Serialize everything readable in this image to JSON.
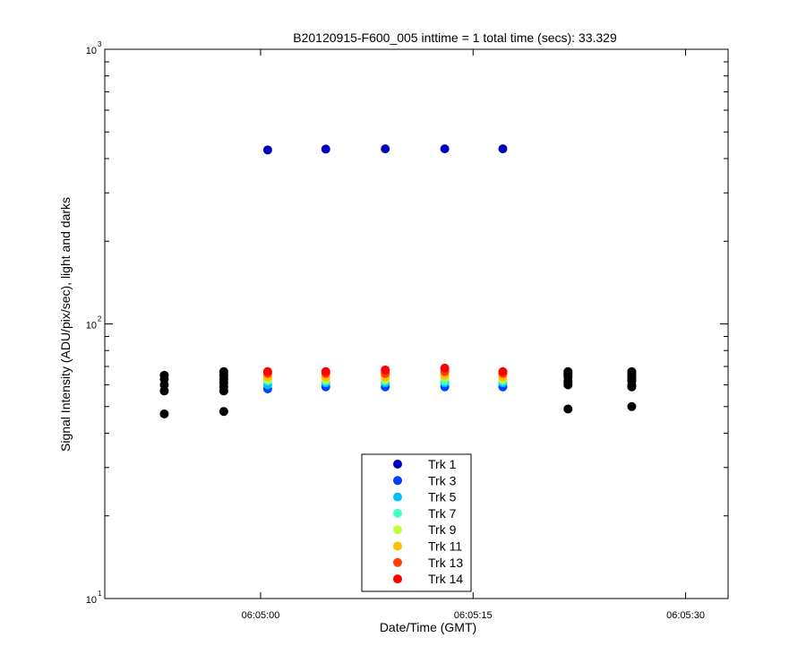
{
  "chart_data": {
    "type": "scatter",
    "title": "B20120915-F600_005 inttime = 1 total time (secs): 33.329",
    "xlabel": "Date/Time (GMT)",
    "ylabel": "Signal Intensity (ADU/pix/sec), light and darks",
    "y_scale": "log",
    "ylim": [
      10,
      1000
    ],
    "xlim": [
      "06:04:49",
      "06:05:33"
    ],
    "x_ticks": [
      "06:05:00",
      "06:05:15",
      "06:05:30"
    ],
    "y_ticks": [
      {
        "base": "10",
        "exp": "1",
        "value": 10
      },
      {
        "base": "10",
        "exp": "2",
        "value": 100
      },
      {
        "base": "10",
        "exp": "3",
        "value": 1000
      }
    ],
    "grid": false,
    "legend": "bottom-center",
    "light_x": [
      "06:05:00.5",
      "06:05:04.6",
      "06:05:08.8",
      "06:05:13.0",
      "06:05:17.1"
    ],
    "series": [
      {
        "name": "Trk 1",
        "color": "#0000bf",
        "values": [
          430,
          433,
          434,
          434,
          434
        ]
      },
      {
        "name": "Trk 3",
        "color": "#0040ff",
        "values": [
          58,
          59,
          59,
          59,
          59
        ]
      },
      {
        "name": "Trk 5",
        "color": "#00bfff",
        "values": [
          60,
          61,
          61,
          61,
          61
        ]
      },
      {
        "name": "Trk 7",
        "color": "#40ffbf",
        "values": [
          62,
          62,
          62,
          62,
          62
        ]
      },
      {
        "name": "Trk 9",
        "color": "#bfff40",
        "values": [
          63,
          63,
          63,
          64,
          63
        ]
      },
      {
        "name": "Trk 11",
        "color": "#ffbf00",
        "values": [
          64,
          64,
          64,
          65,
          64
        ]
      },
      {
        "name": "Trk 13",
        "color": "#ff4000",
        "values": [
          66,
          66,
          66,
          67,
          66
        ]
      },
      {
        "name": "Trk 14",
        "color": "#ff0000",
        "values": [
          67,
          67,
          68,
          69,
          67
        ]
      }
    ],
    "darks": {
      "color": "#000000",
      "x": [
        "06:04:53.2",
        "06:04:57.4",
        "06:05:21.7",
        "06:05:26.2"
      ],
      "values": [
        [
          47,
          57,
          60,
          63,
          65
        ],
        [
          48,
          57,
          59,
          61,
          63,
          65,
          67
        ],
        [
          49,
          60,
          61,
          62,
          64,
          65,
          66,
          67
        ],
        [
          50,
          59,
          60,
          62,
          63,
          64,
          65,
          66,
          67
        ]
      ]
    }
  }
}
